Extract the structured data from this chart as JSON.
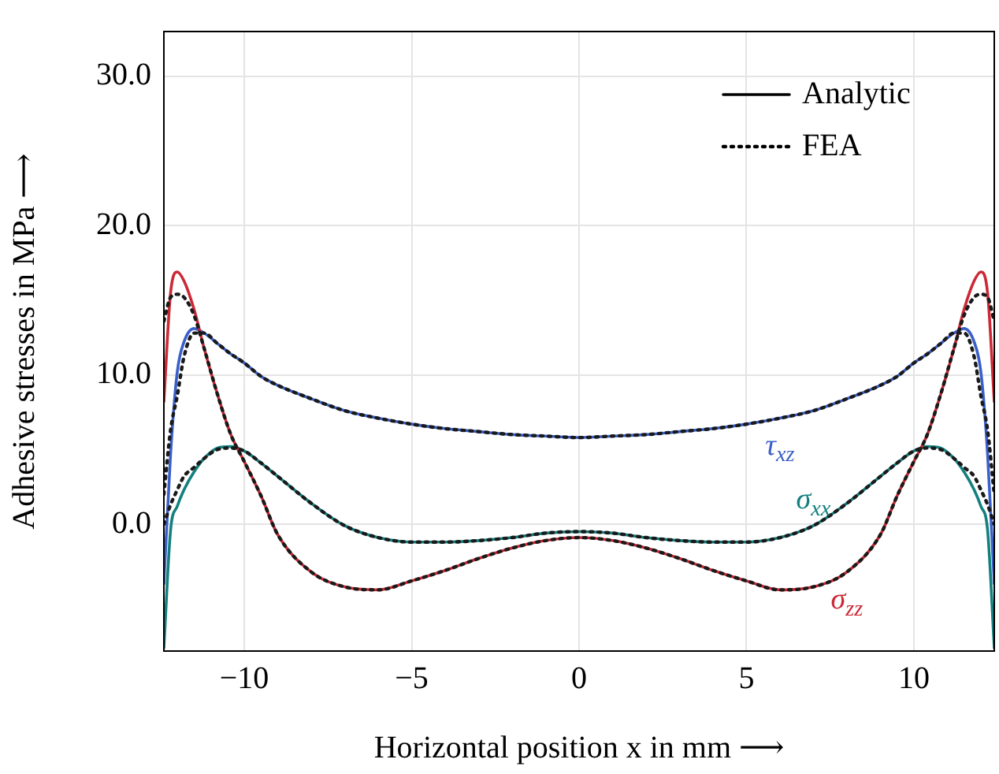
{
  "chart_data": {
    "type": "line",
    "xlabel": "Horizontal position x in mm ⟶",
    "ylabel": "Adhesive stresses in MPa ⟶",
    "x": [
      -12.4,
      -12.2,
      -12.0,
      -11.8,
      -11.5,
      -11.2,
      -10.8,
      -10.4,
      -10.0,
      -9.5,
      -9.0,
      -8.0,
      -7.0,
      -6.0,
      -5.0,
      -4.0,
      -3.0,
      -2.0,
      -1.0,
      0,
      1.0,
      2.0,
      3.0,
      4.0,
      5.0,
      6.0,
      7.0,
      8.0,
      9.0,
      9.5,
      10.0,
      10.4,
      10.8,
      11.2,
      11.5,
      11.8,
      12.0,
      12.2,
      12.4
    ],
    "series": [
      {
        "name": "τ$_{xz}$",
        "color": "#3a5fc8",
        "line_style": "solid",
        "values": [
          -4.0,
          4.7,
          10.2,
          12.2,
          13.1,
          12.8,
          12.1,
          11.4,
          10.8,
          9.9,
          9.3,
          8.4,
          7.6,
          7.1,
          6.7,
          6.4,
          6.2,
          6.0,
          5.9,
          5.8,
          5.9,
          6.0,
          6.2,
          6.4,
          6.7,
          7.1,
          7.6,
          8.4,
          9.3,
          9.9,
          10.8,
          11.4,
          12.1,
          12.8,
          13.1,
          12.2,
          10.2,
          4.7,
          -4.0
        ]
      },
      {
        "name": "σ$_{xx}$",
        "color": "#137f7f",
        "line_style": "solid",
        "values": [
          -8.3,
          -0.4,
          1.2,
          2.3,
          3.5,
          4.4,
          5.1,
          5.2,
          4.9,
          4.1,
          3.2,
          1.4,
          -0.1,
          -0.9,
          -1.2,
          -1.2,
          -1.1,
          -0.9,
          -0.6,
          -0.5,
          -0.6,
          -0.9,
          -1.1,
          -1.2,
          -1.2,
          -0.9,
          -0.1,
          1.4,
          3.2,
          4.1,
          4.9,
          5.2,
          5.1,
          4.4,
          3.5,
          2.3,
          1.2,
          -0.4,
          -8.3
        ]
      },
      {
        "name": "σ$_{zz}$",
        "color": "#cc2936",
        "line_style": "solid",
        "values": [
          8.2,
          15.5,
          16.9,
          16.3,
          14.4,
          11.8,
          8.7,
          6.0,
          4.2,
          1.9,
          -0.7,
          -3.2,
          -4.2,
          -4.4,
          -3.8,
          -3.1,
          -2.3,
          -1.6,
          -1.1,
          -0.9,
          -1.1,
          -1.6,
          -2.3,
          -3.1,
          -3.8,
          -4.4,
          -4.2,
          -3.2,
          -0.7,
          1.9,
          4.2,
          6.0,
          8.7,
          11.8,
          14.4,
          16.3,
          16.9,
          15.5,
          8.2
        ]
      },
      {
        "color": "#1a1a1a",
        "line_style": "dotted",
        "values": [
          2.0,
          6.3,
          8.6,
          11.2,
          12.8,
          12.8,
          12.1,
          11.4,
          10.8,
          9.9,
          9.3,
          8.4,
          7.6,
          7.1,
          6.7,
          6.4,
          6.2,
          6.0,
          5.9,
          5.8,
          5.9,
          6.0,
          6.2,
          6.4,
          6.7,
          7.1,
          7.6,
          8.4,
          9.3,
          9.9,
          10.8,
          11.4,
          12.1,
          12.8,
          12.8,
          11.2,
          8.6,
          6.3,
          2.0
        ]
      },
      {
        "color": "#1a1a1a",
        "line_style": "dotted",
        "values": [
          0.0,
          1.3,
          2.3,
          3.2,
          3.8,
          4.4,
          5.0,
          5.1,
          4.9,
          4.1,
          3.2,
          1.4,
          -0.1,
          -0.9,
          -1.2,
          -1.2,
          -1.1,
          -0.9,
          -0.6,
          -0.5,
          -0.6,
          -0.9,
          -1.1,
          -1.2,
          -1.2,
          -0.9,
          -0.1,
          1.4,
          3.2,
          4.1,
          4.9,
          5.1,
          5.0,
          4.4,
          3.8,
          3.2,
          2.3,
          1.3,
          0.0
        ]
      },
      {
        "color": "#1a1a1a",
        "line_style": "dotted",
        "values": [
          13.6,
          15.2,
          15.4,
          15.2,
          14.0,
          11.8,
          8.7,
          6.0,
          4.2,
          1.9,
          -0.7,
          -3.2,
          -4.2,
          -4.4,
          -3.8,
          -3.1,
          -2.3,
          -1.6,
          -1.1,
          -0.9,
          -1.1,
          -1.6,
          -2.3,
          -3.1,
          -3.8,
          -4.4,
          -4.2,
          -3.2,
          -0.7,
          1.9,
          4.2,
          6.0,
          8.7,
          11.8,
          14.0,
          15.2,
          15.4,
          15.2,
          13.6
        ]
      }
    ],
    "xlim": [
      -12.4,
      12.4
    ],
    "xticks": [
      {
        "value": -10,
        "label": "−10"
      },
      {
        "value": -5,
        "label": "−5"
      },
      0,
      5,
      10
    ],
    "ylim": [
      -8.5,
      33
    ],
    "yticks": [
      {
        "value": 0,
        "label": "0.0"
      },
      {
        "value": 10,
        "label": "10.0"
      },
      {
        "value": 20,
        "label": "20.0"
      },
      {
        "value": 30,
        "label": "30.0"
      }
    ],
    "grid": true,
    "annotations": [
      "Analytic",
      "FEA"
    ]
  }
}
